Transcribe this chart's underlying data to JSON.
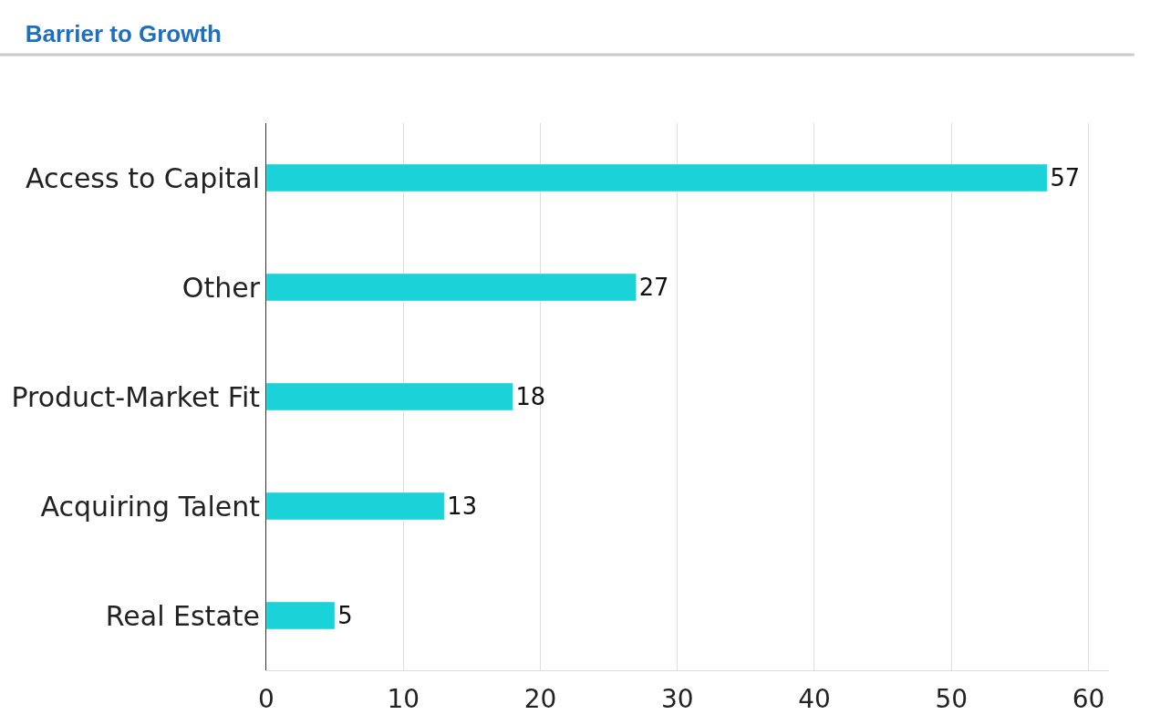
{
  "chart_data": {
    "type": "bar",
    "title": "Barrier to Growth",
    "orientation": "horizontal",
    "categories": [
      "Access to Capital",
      "Other",
      "Product-Market Fit",
      "Acquiring Talent",
      "Real Estate"
    ],
    "values": [
      57,
      27,
      18,
      13,
      5
    ],
    "color": "#1ad3d9",
    "xlim": [
      0,
      61.5
    ],
    "xticks": [
      0,
      10,
      20,
      30,
      40,
      50,
      60
    ],
    "grid": "x",
    "data_labels": true
  }
}
